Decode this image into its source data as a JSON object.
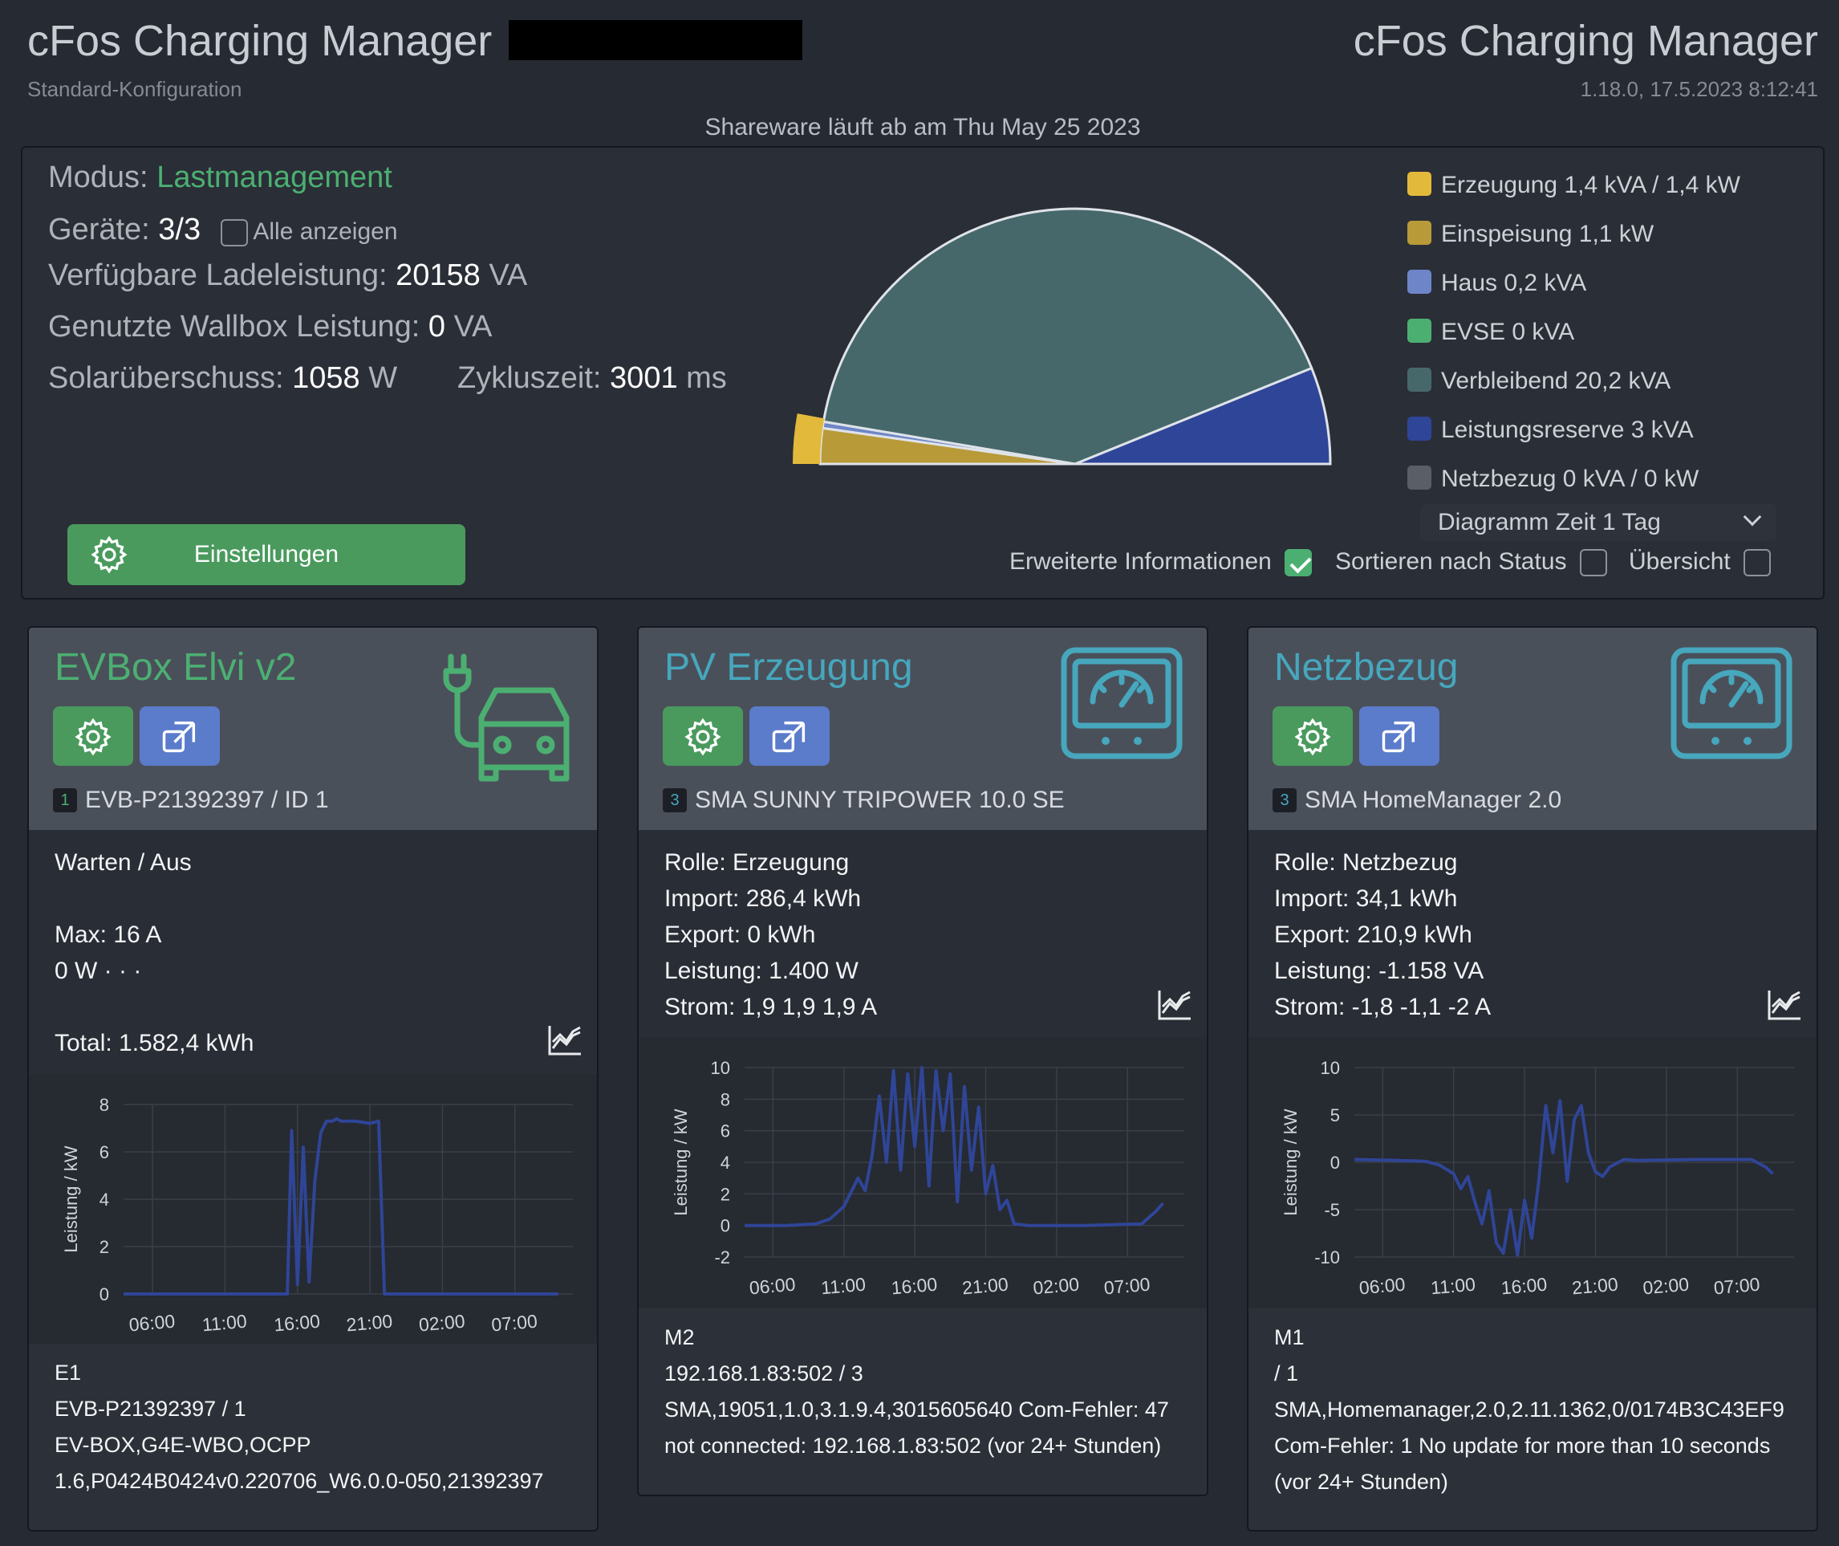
{
  "header": {
    "title_left": "cFos Charging Manager",
    "subtitle_left": "Standard-Konfiguration",
    "title_right": "cFos Charging Manager",
    "subtitle_right": "1.18.0, 17.5.2023 8:12:41",
    "shareware": "Shareware läuft ab am Thu May 25 2023"
  },
  "summary": {
    "mode_label": "Modus:",
    "mode_value": "Lastmanagement",
    "devices_label": "Geräte:",
    "devices_value": "3/3",
    "show_all_label": "Alle anzeigen",
    "avail_label": "Verfügbare Ladeleistung:",
    "avail_value": "20158",
    "avail_unit": "VA",
    "used_label": "Genutzte Wallbox Leistung:",
    "used_value": "0",
    "used_unit": "VA",
    "solar_label": "Solarüberschuss:",
    "solar_value": "1058",
    "solar_unit": "W",
    "cycle_label": "Zykluszeit:",
    "cycle_value": "3001",
    "cycle_unit": "ms",
    "settings_label": "Einstellungen",
    "diagram_time": "Diagramm Zeit 1 Tag",
    "opt_extended": "Erweiterte Informationen",
    "opt_extended_checked": true,
    "opt_sort": "Sortieren nach Status",
    "opt_sort_checked": false,
    "opt_overview": "Übersicht",
    "opt_overview_checked": false
  },
  "legend": [
    {
      "label": "Erzeugung 1,4 kVA / 1,4 kW",
      "color": "#e3b93c"
    },
    {
      "label": "Einspeisung 1,1 kW",
      "color": "#b89a38"
    },
    {
      "label": "Haus 0,2 kVA",
      "color": "#6e86c8"
    },
    {
      "label": "EVSE 0 kVA",
      "color": "#4caf72"
    },
    {
      "label": "Verbleibend 20,2 kVA",
      "color": "#46686b"
    },
    {
      "label": "Leistungsreserve 3 kVA",
      "color": "#2f4597"
    },
    {
      "label": "Netzbezug 0 kVA / 0 kW",
      "color": "#5a5e66"
    }
  ],
  "pie": {
    "slices": [
      {
        "name": "Einspeisung",
        "value": 1.1,
        "color": "#b89a38"
      },
      {
        "name": "Haus",
        "value": 0.2,
        "color": "#6e86c8"
      },
      {
        "name": "Verbleibend",
        "value": 20.2,
        "color": "#46686b"
      },
      {
        "name": "Leistungsreserve",
        "value": 3,
        "color": "#2f4597"
      }
    ],
    "generation": {
      "value": 1.4,
      "color": "#e3b93c"
    }
  },
  "cards": [
    {
      "title": "EVBox Elvi v2",
      "title_color": "#4caf72",
      "badge": "1",
      "badge_color": "#4caf72",
      "id_text": "EVB-P21392397 / ID 1",
      "lines": [
        "Warten / Aus",
        "",
        "Max: 16 A",
        "0 W · · ·",
        "",
        "Total: 1.582,4 kWh"
      ],
      "foot": [
        "E1",
        "EVB-P21392397 / 1",
        "EV-BOX,G4E-WBO,OCPP",
        "1.6,P0424B0424v0.220706_W6.0.0-050,21392397"
      ]
    },
    {
      "title": "PV Erzeugung",
      "title_color": "#46a7bd",
      "badge": "3",
      "badge_color": "#46a7bd",
      "id_text": "SMA SUNNY TRIPOWER 10.0 SE",
      "lines": [
        "Rolle: Erzeugung",
        "Import: 286,4 kWh",
        "Export: 0 kWh",
        "Leistung: 1.400 W",
        "Strom: 1,9 1,9 1,9 A"
      ],
      "foot": [
        "M2",
        "192.168.1.83:502 / 3",
        "SMA,19051,1.0,3.1.9.4,3015605640 Com-Fehler: 47",
        "not connected: 192.168.1.83:502 (vor 24+ Stunden)"
      ]
    },
    {
      "title": "Netzbezug",
      "title_color": "#46a7bd",
      "badge": "3",
      "badge_color": "#46a7bd",
      "id_text": "SMA HomeManager 2.0",
      "lines": [
        "Rolle: Netzbezug",
        "Import: 34,1 kWh",
        "Export: 210,9 kWh",
        "Leistung: -1.158 VA",
        "Strom: -1,8 -1,1 -2 A"
      ],
      "foot": [
        "M1",
        "/ 1",
        "SMA,Homemanager,2.0,2.11.1362,0/0174B3C43EF9",
        "Com-Fehler: 1 No update for more than 10 seconds",
        "(vor 24+ Stunden)"
      ]
    }
  ],
  "chart_data": [
    {
      "type": "line",
      "ylabel": "Leistung / kW",
      "x_ticks": [
        "06:00",
        "11:00",
        "16:00",
        "21:00",
        "02:00",
        "07:00"
      ],
      "y_ticks": [
        0,
        2,
        4,
        6,
        8
      ],
      "ylim": [
        0,
        8
      ],
      "x": [
        0,
        3,
        6,
        9,
        11.3,
        11.6,
        12,
        12.4,
        12.8,
        13.2,
        13.6,
        14,
        14.4,
        14.7,
        15,
        16,
        17,
        17.6,
        18,
        18.5,
        21,
        24,
        27,
        30
      ],
      "values": [
        0,
        0,
        0,
        0,
        0,
        6.9,
        0.4,
        6.2,
        0.5,
        4.8,
        6.8,
        7.3,
        7.3,
        7.4,
        7.3,
        7.3,
        7.2,
        7.3,
        0,
        0,
        0,
        0,
        0,
        0
      ],
      "color": "#2f4597"
    },
    {
      "type": "line",
      "ylabel": "Leistung / kW",
      "x_ticks": [
        "06:00",
        "11:00",
        "16:00",
        "21:00",
        "02:00",
        "07:00"
      ],
      "y_ticks": [
        -2,
        0,
        2,
        4,
        6,
        8,
        10
      ],
      "ylim": [
        -2,
        10
      ],
      "x": [
        0,
        3,
        5,
        6,
        7,
        8,
        8.5,
        9,
        9.5,
        10,
        10.5,
        11,
        11.5,
        12,
        12.5,
        13,
        13.5,
        14,
        14.5,
        15,
        15.5,
        16,
        16.5,
        17,
        17.5,
        18,
        18.5,
        19,
        20,
        24,
        28,
        29,
        29.5
      ],
      "values": [
        0,
        0,
        0.1,
        0.4,
        1.2,
        3.0,
        2.2,
        4.5,
        8.2,
        4.0,
        9.8,
        3.5,
        9.6,
        5.0,
        10.0,
        2.5,
        9.8,
        6.0,
        9.6,
        1.5,
        8.8,
        3.5,
        7.5,
        2.0,
        3.8,
        1.0,
        1.6,
        0.1,
        0,
        0,
        0.1,
        0.9,
        1.4
      ],
      "color": "#2f4597"
    },
    {
      "type": "line",
      "ylabel": "Leistung / kW",
      "x_ticks": [
        "06:00",
        "11:00",
        "16:00",
        "21:00",
        "02:00",
        "07:00"
      ],
      "y_ticks": [
        -10,
        -5,
        0,
        5,
        10
      ],
      "ylim": [
        -10,
        10
      ],
      "x": [
        0,
        3,
        5,
        6,
        7,
        7.5,
        8,
        8.5,
        9,
        9.5,
        10,
        10.5,
        11,
        11.5,
        12,
        12.5,
        13,
        13.5,
        14,
        14.5,
        15,
        15.5,
        16,
        16.5,
        17,
        17.5,
        18,
        19,
        20,
        24,
        28,
        29,
        29.5
      ],
      "values": [
        0.3,
        0.2,
        0.1,
        -0.3,
        -1.2,
        -2.8,
        -1.5,
        -4.2,
        -6.5,
        -3.0,
        -8.5,
        -9.6,
        -5.0,
        -9.8,
        -4.0,
        -8.0,
        -2.0,
        6.0,
        1.0,
        6.5,
        -2.0,
        4.5,
        6.0,
        1.0,
        -1.0,
        -1.5,
        -0.5,
        0.3,
        0.2,
        0.3,
        0.3,
        -0.5,
        -1.2
      ],
      "color": "#2f4597"
    }
  ]
}
